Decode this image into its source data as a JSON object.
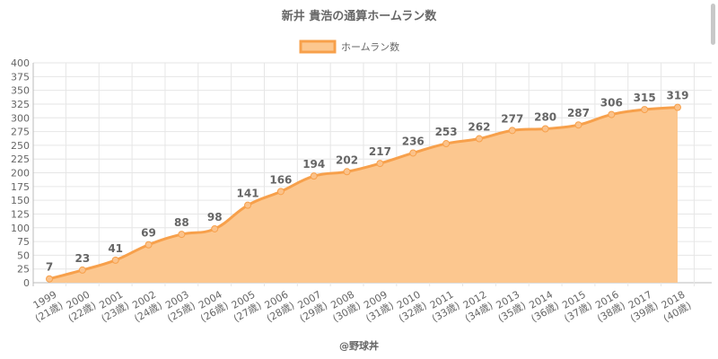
{
  "chart_data": {
    "type": "area",
    "title": "新井 貴浩の通算ホームラン数",
    "legend": {
      "label": "ホームラン数",
      "position": "top"
    },
    "categories": [
      "1999",
      "2000",
      "2001",
      "2002",
      "2003",
      "2004",
      "2005",
      "2006",
      "2007",
      "2008",
      "2009",
      "2010",
      "2011",
      "2012",
      "2013",
      "2014",
      "2015",
      "2016",
      "2017",
      "2018"
    ],
    "ages": [
      "(21歳)",
      "(22歳)",
      "(23歳)",
      "(24歳)",
      "(25歳)",
      "(26歳)",
      "(27歳)",
      "(28歳)",
      "(29歳)",
      "(30歳)",
      "(31歳)",
      "(32歳)",
      "(33歳)",
      "(34歳)",
      "(35歳)",
      "(36歳)",
      "(37歳)",
      "(38歳)",
      "(39歳)",
      "(40歳)"
    ],
    "series": [
      {
        "name": "ホームラン数",
        "values": [
          7,
          23,
          41,
          69,
          88,
          98,
          141,
          166,
          194,
          202,
          217,
          236,
          253,
          262,
          277,
          280,
          287,
          306,
          315,
          319
        ]
      }
    ],
    "ylim": [
      0,
      400
    ],
    "yticks": [
      0,
      25,
      50,
      75,
      100,
      125,
      150,
      175,
      200,
      225,
      250,
      275,
      300,
      325,
      350,
      375,
      400
    ],
    "grid": true,
    "colors": {
      "line": "#f7a04b",
      "fill": "#fcc78f",
      "point": "#fbc28a"
    }
  },
  "footer": "@野球丼"
}
